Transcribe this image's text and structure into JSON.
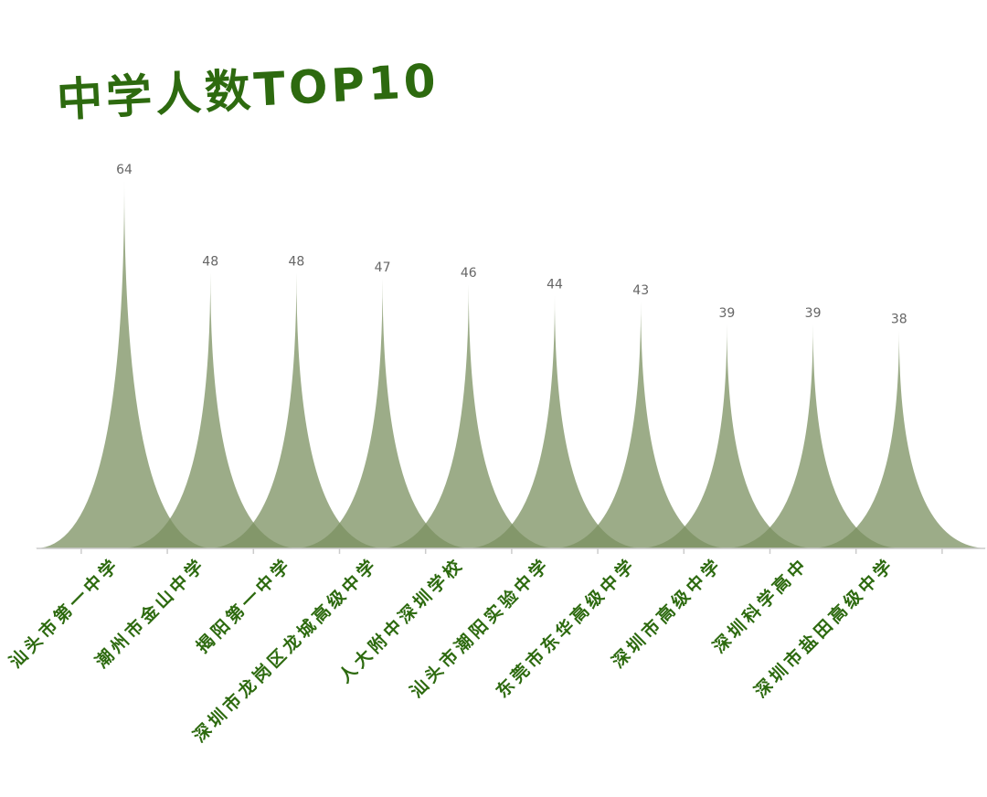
{
  "chart_data": {
    "type": "bar",
    "title": "中学人数TOP10",
    "categories": [
      "汕头市第一中学",
      "潮州市金山中学",
      "揭阳第一中学",
      "深圳市龙岗区龙城高级中学",
      "人大附中深圳学校",
      "汕头市潮阳实验中学",
      "东莞市东华高级中学",
      "深圳市高级中学",
      "深圳科学高中",
      "深圳市盐田高级中学"
    ],
    "values": [
      64,
      48,
      48,
      47,
      46,
      44,
      43,
      39,
      39,
      38
    ],
    "xlabel": "",
    "ylabel": "",
    "ylim": [
      0,
      64
    ],
    "grid": false,
    "legend": false
  },
  "colors": {
    "bar_fill": "#7b9060",
    "title": "#2d6a0f",
    "category_label": "#2d6a0f",
    "value_label": "#666666",
    "axis": "#cccccc"
  }
}
